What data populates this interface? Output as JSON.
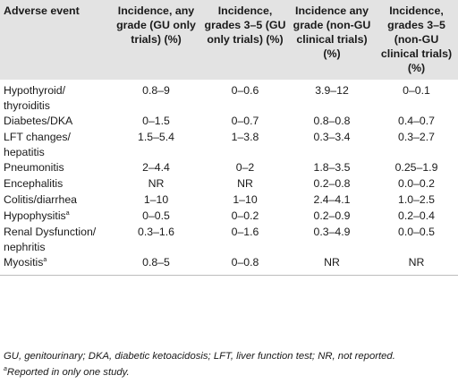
{
  "table": {
    "headers": [
      "Adverse event",
      "Incidence, any grade (GU only trials) (%)",
      "Incidence, grades 3–5 (GU only trials) (%)",
      "Incidence any grade (non-GU clinical trials) (%)",
      "Incidence, grades 3–5 (non-GU clinical trials) (%)"
    ],
    "rows": [
      {
        "event": "Hypothyroid/ thyroiditis",
        "sup": "",
        "c1": "0.8–9",
        "c2": "0–0.6",
        "c3": "3.9–12",
        "c4": "0–0.1"
      },
      {
        "event": "Diabetes/DKA",
        "sup": "",
        "c1": "0–1.5",
        "c2": "0–0.7",
        "c3": "0.8–0.8",
        "c4": "0.4–0.7"
      },
      {
        "event": "LFT changes/ hepatitis",
        "sup": "",
        "c1": "1.5–5.4",
        "c2": "1–3.8",
        "c3": "0.3–3.4",
        "c4": "0.3–2.7"
      },
      {
        "event": "Pneumonitis",
        "sup": "",
        "c1": "2–4.4",
        "c2": "0–2",
        "c3": "1.8–3.5",
        "c4": "0.25–1.9"
      },
      {
        "event": "Encephalitis",
        "sup": "",
        "c1": "NR",
        "c2": "NR",
        "c3": "0.2–0.8",
        "c4": "0.0–0.2"
      },
      {
        "event": "Colitis/diarrhea",
        "sup": "",
        "c1": "1–10",
        "c2": "1–10",
        "c3": "2.4–4.1",
        "c4": "1.0–2.5"
      },
      {
        "event": "Hypophysitis",
        "sup": "a",
        "c1": "0–0.5",
        "c2": "0–0.2",
        "c3": "0.2–0.9",
        "c4": "0.2–0.4"
      },
      {
        "event": "Renal Dysfunction/ nephritis",
        "sup": "",
        "c1": "0.3–1.6",
        "c2": "0–1.6",
        "c3": "0.3–4.9",
        "c4": "0.0–0.5"
      },
      {
        "event": "Myositis",
        "sup": "a",
        "c1": "0.8–5",
        "c2": "0–0.8",
        "c3": "NR",
        "c4": "NR"
      }
    ]
  },
  "footnotes": {
    "abbreviations": "GU, genitourinary; DKA, diabetic ketoacidosis; LFT, liver function test; NR, not reported.",
    "marker": "a",
    "only_one": "Reported in only one study."
  }
}
